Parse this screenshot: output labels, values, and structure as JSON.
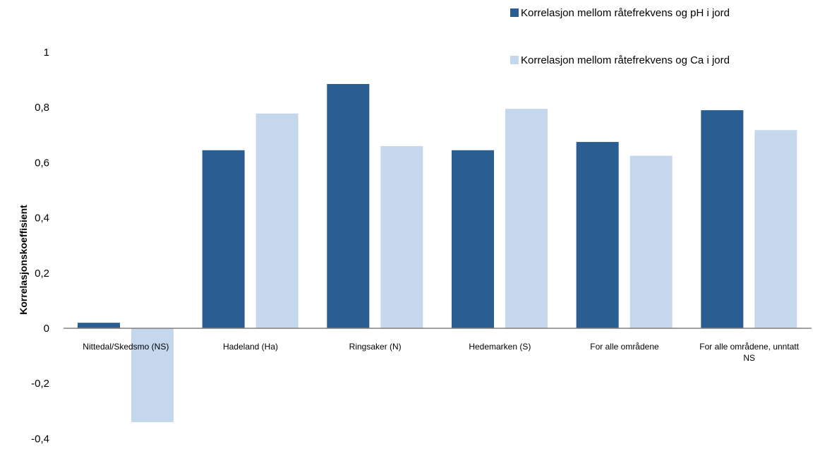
{
  "chart_data": {
    "type": "bar",
    "categories": [
      "Nittedal/Skedsmo (NS)",
      "Hadeland (Ha)",
      "Ringsaker (N)",
      "Hedemarken (S)",
      "For alle områdene",
      "For alle områdene, unntatt NS"
    ],
    "series": [
      {
        "name": "Korrelasjon mellom råtefrekvens og pH i jord",
        "color": "#2a5d91",
        "values": [
          0.02,
          0.645,
          0.885,
          0.645,
          0.675,
          0.79
        ]
      },
      {
        "name": "Korrelasjon mellom råtefrekvens og Ca i jord",
        "color": "#c5d7ec",
        "values": [
          -0.34,
          0.778,
          0.66,
          0.795,
          0.625,
          0.718
        ]
      }
    ],
    "ylabel": "Korrelasjonskoeffisient",
    "xlabel": "",
    "ylim": [
      -0.4,
      1
    ],
    "yticks": [
      "-0,4",
      "-0,2",
      "0",
      "0,2",
      "0,4",
      "0,6",
      "0,8",
      "1"
    ],
    "legend": "top-right",
    "grid": false
  }
}
